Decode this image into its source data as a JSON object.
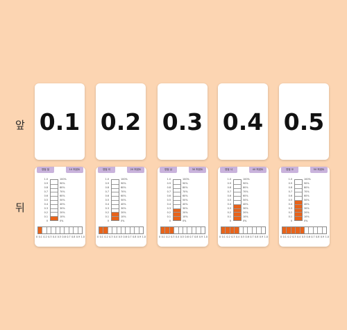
{
  "labels": {
    "front": "앞",
    "back": "뒤"
  },
  "colors": {
    "background": "#fcd5b2",
    "fill": "#e8631a",
    "header": "#c9b3dc"
  },
  "ticks": [
    "1.0",
    "0.9",
    "0.8",
    "0.7",
    "0.6",
    "0.5",
    "0.4",
    "0.3",
    "0.2",
    "0.1",
    "0"
  ],
  "pcts": [
    "100%",
    "90%",
    "80%",
    "70%",
    "60%",
    "50%",
    "40%",
    "30%",
    "20%",
    "10%",
    "0%"
  ],
  "axis": [
    "0",
    "0.1",
    "0.2",
    "0.3",
    "0.4",
    "0.5",
    "0.6",
    "0.7",
    "0.8",
    "0.9",
    "1.0"
  ],
  "cards": [
    {
      "value": "0.1",
      "fraction": 0.1,
      "header_left": "영점 일",
      "header_right": "10 퍼센트"
    },
    {
      "value": "0.2",
      "fraction": 0.2,
      "header_left": "영점 이",
      "header_right": "20 퍼센트"
    },
    {
      "value": "0.3",
      "fraction": 0.3,
      "header_left": "영점 삼",
      "header_right": "30 퍼센트"
    },
    {
      "value": "0.4",
      "fraction": 0.4,
      "header_left": "영점 사",
      "header_right": "40 퍼센트"
    },
    {
      "value": "0.5",
      "fraction": 0.5,
      "header_left": "영점 오",
      "header_right": "50 퍼센트"
    }
  ]
}
